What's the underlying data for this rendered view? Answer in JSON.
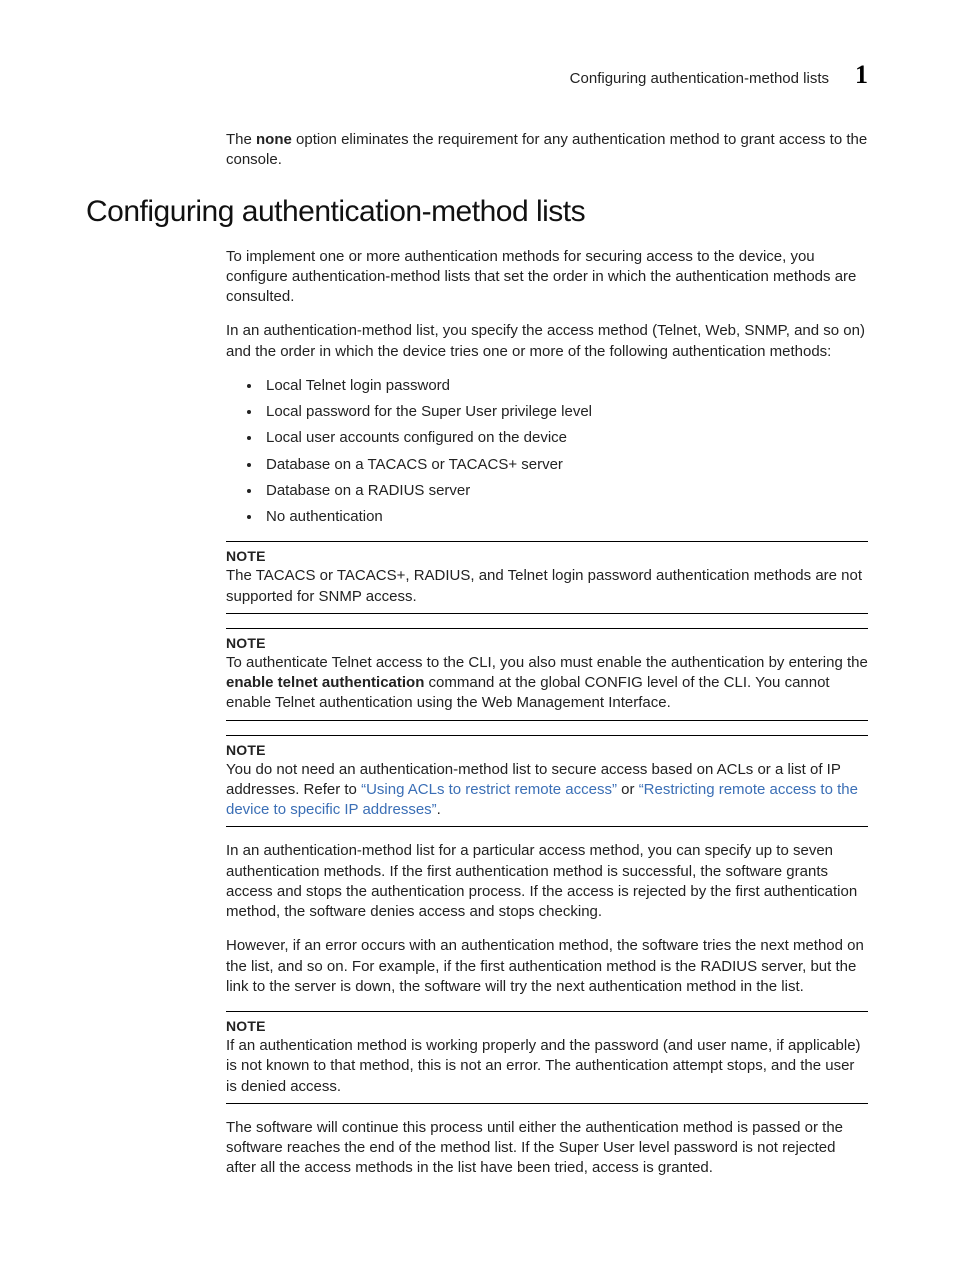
{
  "header": {
    "title": "Configuring authentication-method lists",
    "chapter_number": "1"
  },
  "intro_para_prefix": "The ",
  "intro_bold": "none",
  "intro_para_suffix": " option eliminates the requirement for any authentication method to grant access to the console.",
  "section_heading": "Configuring authentication-method lists",
  "para1": "To implement one or more authentication methods for securing access to the device, you configure authentication-method lists that set the order in which the authentication methods are consulted.",
  "para2": "In an authentication-method list, you specify the access method (Telnet, Web, SNMP, and so on) and the order in which the device tries one or more of the following authentication methods:",
  "bullets": [
    "Local Telnet login password",
    "Local password for the Super User privilege level",
    "Local user accounts configured on the device",
    "Database on a TACACS or TACACS+ server",
    "Database on a RADIUS server",
    "No authentication"
  ],
  "note_label": "NOTE",
  "note1": "The TACACS or TACACS+, RADIUS, and Telnet login password authentication methods are not supported for SNMP access.",
  "note2_prefix": "To authenticate Telnet access to the CLI, you also must enable the authentication by entering the ",
  "note2_bold": "enable telnet authentication",
  "note2_suffix": " command at the global CONFIG level of the CLI. You cannot enable Telnet authentication using the Web Management Interface.",
  "note3_prefix": "You do not need an authentication-method list to secure access based on ACLs or a list of IP addresses. Refer to ",
  "note3_link1": "“Using ACLs to restrict remote access”",
  "note3_mid": " or ",
  "note3_link2": "“Restricting remote access to the device to specific IP addresses”",
  "note3_suffix": ".",
  "para3": "In an authentication-method list for a particular access method, you can specify up to seven authentication methods. If the first authentication method is successful, the software grants access and stops the authentication process. If the access is rejected by the first authentication method, the software denies access and stops checking.",
  "para4": "However, if an error occurs with an authentication method, the software tries the next method on the list, and so on. For example, if the first authentication method is the RADIUS server, but the link to the server is down, the software will try the next authentication method in the list.",
  "note4": "If an authentication method is working properly and the password (and user name, if applicable) is not known to that method, this is not an error. The authentication attempt stops, and the user is denied access.",
  "para5": "The software will continue this process until either the authentication method is passed or the software reaches the end of the method list. If the Super User level password is not rejected after all the access methods in the list have been tried, access is granted."
}
